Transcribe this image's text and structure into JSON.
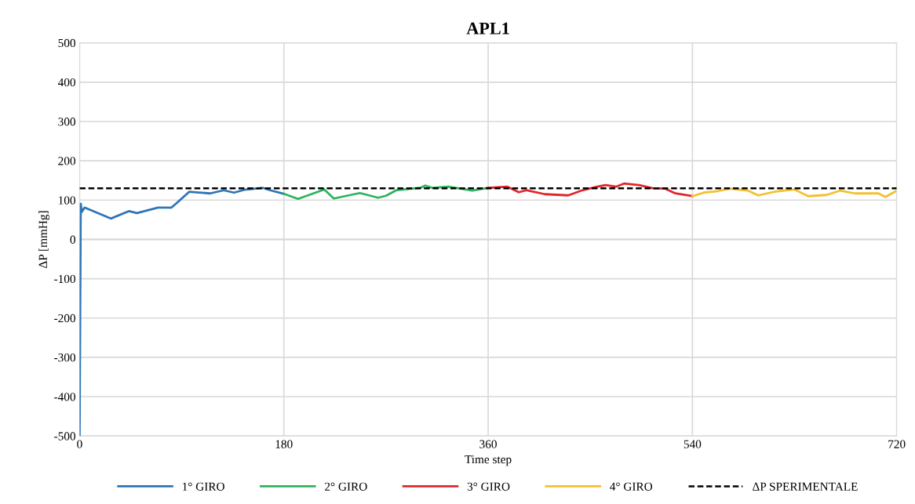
{
  "chart_data": {
    "type": "line",
    "title": "APL1",
    "xlabel": "Time step",
    "ylabel": "ΔP [mmHg]",
    "xlim": [
      0,
      720
    ],
    "xticks": [
      0,
      180,
      360,
      540,
      720
    ],
    "ylim": [
      -500,
      500
    ],
    "yticks": [
      -500,
      -400,
      -300,
      -200,
      -100,
      0,
      100,
      200,
      300,
      400,
      500
    ],
    "grid": true,
    "legend": "bottom",
    "marker": "none",
    "series": [
      {
        "name": "1° GIRO",
        "color": "#2e75b6",
        "x": [
          0,
          1,
          2,
          4.4,
          27.5,
          43.6,
          50.5,
          69,
          81,
          85,
          96.5,
          115,
          127,
          136,
          145,
          161.6,
          168,
          180
        ],
        "values": [
          -500,
          91,
          70,
          81,
          53,
          72,
          67,
          81,
          81,
          91,
          121,
          117,
          125,
          119,
          126,
          131,
          125,
          116
        ]
      },
      {
        "name": "2° GIRO",
        "color": "#2db35d",
        "x": [
          180,
          192.5,
          215.6,
          224,
          247,
          263,
          270,
          279,
          300,
          304.6,
          311,
          325,
          346,
          360
        ],
        "values": [
          116,
          103,
          127,
          104,
          118,
          106,
          111,
          125,
          131,
          137,
          131,
          134,
          124,
          131
        ]
      },
      {
        "name": "3° GIRO",
        "color": "#e0262b",
        "x": [
          360,
          377,
          387,
          393.6,
          410,
          430.6,
          442,
          456,
          463.5,
          472.7,
          479.6,
          493,
          505,
          516,
          525,
          540
        ],
        "values": [
          131,
          134,
          120,
          125,
          115,
          112,
          124,
          134,
          138,
          134,
          142,
          138,
          130,
          129,
          117,
          110
        ]
      },
      {
        "name": "4° GIRO",
        "color": "#f5c02c",
        "x": [
          540,
          550,
          561,
          573,
          589,
          598,
          612,
          630,
          642,
          658,
          670,
          683,
          704,
          710,
          719
        ],
        "values": [
          110,
          119,
          122,
          129,
          124,
          112,
          121,
          127,
          110,
          113,
          124,
          117,
          117,
          108,
          122
        ]
      },
      {
        "name": "ΔP SPERIMENTALE",
        "color": "#000000",
        "line_style": "dashed",
        "x": [
          0,
          720
        ],
        "values": [
          130,
          130
        ]
      }
    ]
  }
}
